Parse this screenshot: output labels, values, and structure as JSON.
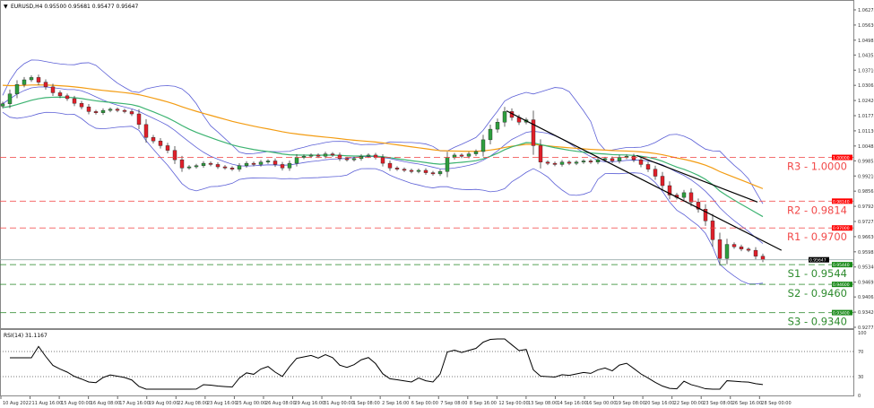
{
  "header": {
    "symbol_info": "EURUSD,H4  0.95500 0.95681 0.95477 0.95647"
  },
  "rsi_label": "RSI(14) 31.1167",
  "chart_data": {
    "type": "candlestick",
    "symbol": "EURUSD",
    "timeframe": "H4",
    "ohlc_header": {
      "open": 0.955,
      "high": 0.95681,
      "low": 0.95477,
      "close": 0.95647
    },
    "current_price": 0.95647,
    "ylim": [
      0.92775,
      1.06275
    ],
    "y_ticks": [
      "1.06275",
      "1.05630",
      "1.04985",
      "1.04355",
      "1.03710",
      "1.03065",
      "1.02420",
      "1.01775",
      "1.01130",
      "1.00485",
      "0.99855",
      "0.99210",
      "0.98565",
      "0.97920",
      "0.97275",
      "0.96630",
      "0.95985",
      "0.95340",
      "0.94695",
      "0.94065",
      "0.93420",
      "0.92775"
    ],
    "x_ticks": [
      "10 Aug 2022",
      "11 Aug 16:00",
      "15 Aug 00:00",
      "16 Aug 08:00",
      "17 Aug 16:00",
      "19 Aug 00:00",
      "22 Aug 08:00",
      "23 Aug 16:00",
      "25 Aug 00:00",
      "26 Aug 08:00",
      "29 Aug 16:00",
      "31 Aug 00:00",
      "1 Sep 08:00",
      "2 Sep 16:00",
      "6 Sep 00:00",
      "7 Sep 08:00",
      "8 Sep 16:00",
      "12 Sep 00:00",
      "13 Sep 08:00",
      "14 Sep 16:00",
      "16 Sep 00:00",
      "19 Sep 08:00",
      "20 Sep 16:00",
      "22 Sep 00:00",
      "23 Sep 08:00",
      "26 Sep 16:00",
      "28 Sep 00:00"
    ],
    "close": [
      1.0228,
      1.027,
      1.031,
      1.033,
      1.034,
      1.032,
      1.03,
      1.0275,
      1.0262,
      1.025,
      1.023,
      1.0215,
      1.0195,
      1.019,
      1.02,
      1.0205,
      1.02,
      1.0195,
      1.0185,
      1.014,
      1.0085,
      1.007,
      1.005,
      1.003,
      0.999,
      0.9955,
      0.996,
      0.9965,
      0.9975,
      0.997,
      0.996,
      0.9955,
      0.995,
      0.9965,
      0.9975,
      0.997,
      0.998,
      0.9985,
      0.997,
      0.9955,
      0.9975,
      1.0,
      1.0005,
      1.001,
      1.0005,
      1.0015,
      1.001,
      0.9995,
      0.999,
      0.9995,
      1.0005,
      1.001,
      1.0,
      0.9975,
      0.9955,
      0.995,
      0.9945,
      0.994,
      0.9945,
      0.9935,
      0.993,
      0.994,
      1.0,
      1.001,
      1.0005,
      1.0015,
      1.0025,
      1.0075,
      1.012,
      1.015,
      1.0195,
      1.017,
      1.015,
      1.016,
      1.005,
      0.998,
      0.9975,
      0.997,
      0.998,
      0.9975,
      0.998,
      0.9985,
      0.998,
      0.999,
      0.9995,
      0.9985,
      1.0,
      1.0005,
      0.999,
      0.997,
      0.995,
      0.992,
      0.988,
      0.984,
      0.983,
      0.985,
      0.981,
      0.978,
      0.973,
      0.965,
      0.957,
      0.963,
      0.962,
      0.961,
      0.9605,
      0.958,
      0.9565
    ],
    "levels": [
      {
        "label": "R3 - 1.0000",
        "price": 1.0,
        "tag": "1.00000",
        "type": "resistance"
      },
      {
        "label": "R2 - 0.9814",
        "price": 0.9814,
        "tag": "0.98140",
        "type": "resistance"
      },
      {
        "label": "R1 - 0.9700",
        "price": 0.97,
        "tag": "0.97000",
        "type": "resistance"
      },
      {
        "label": "S1 - 0.9544",
        "price": 0.9544,
        "tag": "0.95440",
        "type": "support"
      },
      {
        "label": "S2 - 0.9460",
        "price": 0.946,
        "tag": "0.94600",
        "type": "support"
      },
      {
        "label": "S3 - 0.9340",
        "price": 0.934,
        "tag": "0.93400",
        "type": "support"
      }
    ],
    "trendlines": [
      {
        "from": {
          "bar": 70.25,
          "price": 1.0198
        },
        "to": {
          "bar": 108.6,
          "price": 0.9605
        }
      },
      {
        "from": {
          "bar": 88.4,
          "price": 1.0008
        },
        "to": {
          "bar": 105.25,
          "price": 0.981
        }
      }
    ],
    "indicators": {
      "bollinger_bands": true,
      "moving_averages": [
        "orange",
        "green"
      ],
      "rsi": {
        "period": 14,
        "value": 31.1167,
        "levels": [
          70,
          30
        ],
        "ticks": [
          "100",
          "70",
          "30",
          "0"
        ]
      }
    },
    "colors": {
      "up": "#2e9e3e",
      "down": "#e0202a",
      "resistance": "#f24a4a",
      "support": "#2e8b2e",
      "bands": "#5b5fd6",
      "ma_long": "#f39c12",
      "ma_short": "#3cb371",
      "trendline": "#000000"
    }
  }
}
